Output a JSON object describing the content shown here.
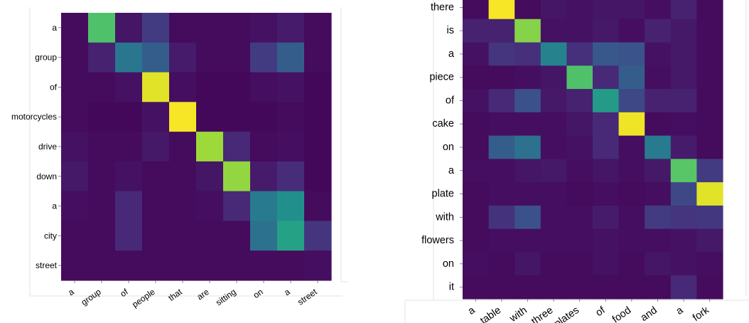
{
  "chart_data": [
    {
      "type": "heatmap",
      "title": "",
      "xlabel": "",
      "ylabel": "",
      "x_labels": [
        "a",
        "group",
        "of",
        "people",
        "that",
        "are",
        "sitting",
        "on",
        "a",
        "street"
      ],
      "y_labels": [
        "a",
        "group",
        "of",
        "motorcycles",
        "drive",
        "down",
        "a",
        "city",
        "street"
      ],
      "colormap": "viridis",
      "value_range": [
        0,
        1
      ],
      "values": [
        [
          0.03,
          0.72,
          0.06,
          0.18,
          0.03,
          0.03,
          0.03,
          0.05,
          0.08,
          0.03
        ],
        [
          0.03,
          0.1,
          0.4,
          0.3,
          0.08,
          0.03,
          0.03,
          0.18,
          0.3,
          0.03
        ],
        [
          0.03,
          0.03,
          0.05,
          0.96,
          0.04,
          0.02,
          0.02,
          0.04,
          0.05,
          0.02
        ],
        [
          0.03,
          0.02,
          0.02,
          0.05,
          0.99,
          0.02,
          0.02,
          0.02,
          0.03,
          0.02
        ],
        [
          0.05,
          0.03,
          0.03,
          0.07,
          0.03,
          0.86,
          0.12,
          0.03,
          0.04,
          0.02
        ],
        [
          0.07,
          0.03,
          0.05,
          0.03,
          0.03,
          0.06,
          0.84,
          0.08,
          0.13,
          0.02
        ],
        [
          0.04,
          0.03,
          0.12,
          0.03,
          0.03,
          0.04,
          0.12,
          0.42,
          0.5,
          0.03
        ],
        [
          0.03,
          0.03,
          0.12,
          0.03,
          0.03,
          0.03,
          0.03,
          0.38,
          0.58,
          0.16
        ],
        [
          0.03,
          0.03,
          0.03,
          0.03,
          0.03,
          0.03,
          0.03,
          0.03,
          0.03,
          0.04
        ]
      ]
    },
    {
      "type": "heatmap",
      "title": "",
      "xlabel": "",
      "ylabel": "",
      "x_labels": [
        "a",
        "table",
        "with",
        "three",
        "plates",
        "of",
        "food",
        "and",
        "a",
        "fork"
      ],
      "y_labels": [
        "there",
        "is",
        "a",
        "piece",
        "of",
        "cake",
        "on",
        "a",
        "plate",
        "with",
        "flowers",
        "on",
        "it"
      ],
      "colormap": "viridis",
      "value_range": [
        0,
        1
      ],
      "values": [
        [
          0.03,
          0.99,
          0.03,
          0.06,
          0.05,
          0.06,
          0.06,
          0.04,
          0.1,
          0.03
        ],
        [
          0.1,
          0.1,
          0.82,
          0.05,
          0.05,
          0.07,
          0.04,
          0.1,
          0.07,
          0.03
        ],
        [
          0.05,
          0.16,
          0.14,
          0.45,
          0.14,
          0.28,
          0.26,
          0.05,
          0.07,
          0.03
        ],
        [
          0.03,
          0.03,
          0.04,
          0.06,
          0.72,
          0.12,
          0.3,
          0.04,
          0.07,
          0.03
        ],
        [
          0.05,
          0.12,
          0.25,
          0.07,
          0.1,
          0.55,
          0.22,
          0.1,
          0.1,
          0.03
        ],
        [
          0.03,
          0.04,
          0.04,
          0.04,
          0.06,
          0.12,
          0.98,
          0.03,
          0.04,
          0.03
        ],
        [
          0.03,
          0.3,
          0.38,
          0.04,
          0.05,
          0.12,
          0.04,
          0.42,
          0.08,
          0.03
        ],
        [
          0.04,
          0.04,
          0.06,
          0.07,
          0.04,
          0.06,
          0.04,
          0.07,
          0.74,
          0.18
        ],
        [
          0.03,
          0.04,
          0.04,
          0.04,
          0.03,
          0.04,
          0.03,
          0.04,
          0.22,
          0.96
        ],
        [
          0.03,
          0.15,
          0.25,
          0.04,
          0.04,
          0.08,
          0.04,
          0.18,
          0.16,
          0.17
        ],
        [
          0.03,
          0.04,
          0.04,
          0.04,
          0.04,
          0.05,
          0.04,
          0.04,
          0.05,
          0.07
        ],
        [
          0.04,
          0.03,
          0.06,
          0.03,
          0.03,
          0.05,
          0.03,
          0.06,
          0.05,
          0.04
        ],
        [
          0.03,
          0.03,
          0.03,
          0.03,
          0.03,
          0.03,
          0.03,
          0.03,
          0.12,
          0.03
        ]
      ]
    }
  ]
}
